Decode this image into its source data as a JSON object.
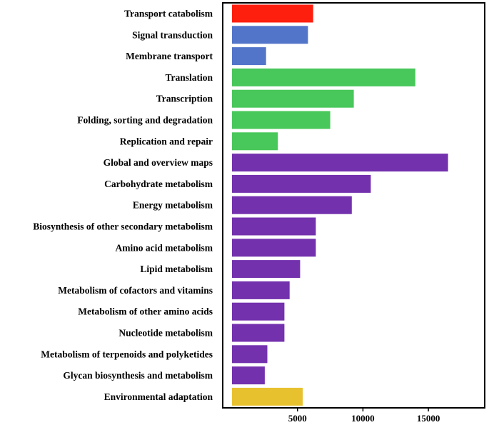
{
  "chart_data": {
    "type": "bar",
    "orientation": "horizontal",
    "categories": [
      "Transport catabolism",
      "Signal transduction",
      "Membrane transport",
      "Translation",
      "Transcription",
      "Folding, sorting and degradation",
      "Replication and repair",
      "Global and overview maps",
      "Carbohydrate metabolism",
      "Energy metabolism",
      "Biosynthesis of other secondary metabolism",
      "Amino acid metabolism",
      "Lipid metabolism",
      "Metabolism of cofactors and vitamins",
      "Metabolism of other amino acids",
      "Nucleotide metabolism",
      "Metabolism of terpenoids and polyketides",
      "Glycan biosynthesis and metabolism",
      "Environmental adaptation"
    ],
    "values": [
      6200,
      5800,
      2600,
      14000,
      9300,
      7500,
      3500,
      16500,
      10600,
      9150,
      6400,
      6400,
      5200,
      4400,
      4000,
      4000,
      2700,
      2500,
      5400
    ],
    "colors": [
      "#ff1f0f",
      "#5275c9",
      "#5275c9",
      "#48c75a",
      "#48c75a",
      "#48c75a",
      "#48c75a",
      "#7331ad",
      "#7331ad",
      "#7331ad",
      "#7331ad",
      "#7331ad",
      "#7331ad",
      "#7331ad",
      "#7331ad",
      "#7331ad",
      "#7331ad",
      "#7331ad",
      "#e8c12f"
    ],
    "xticks": [
      5000,
      10000,
      15000
    ],
    "xlim": [
      0,
      19300
    ],
    "title": "",
    "xlabel": "",
    "ylabel": "",
    "grid": false,
    "legend": "none"
  }
}
